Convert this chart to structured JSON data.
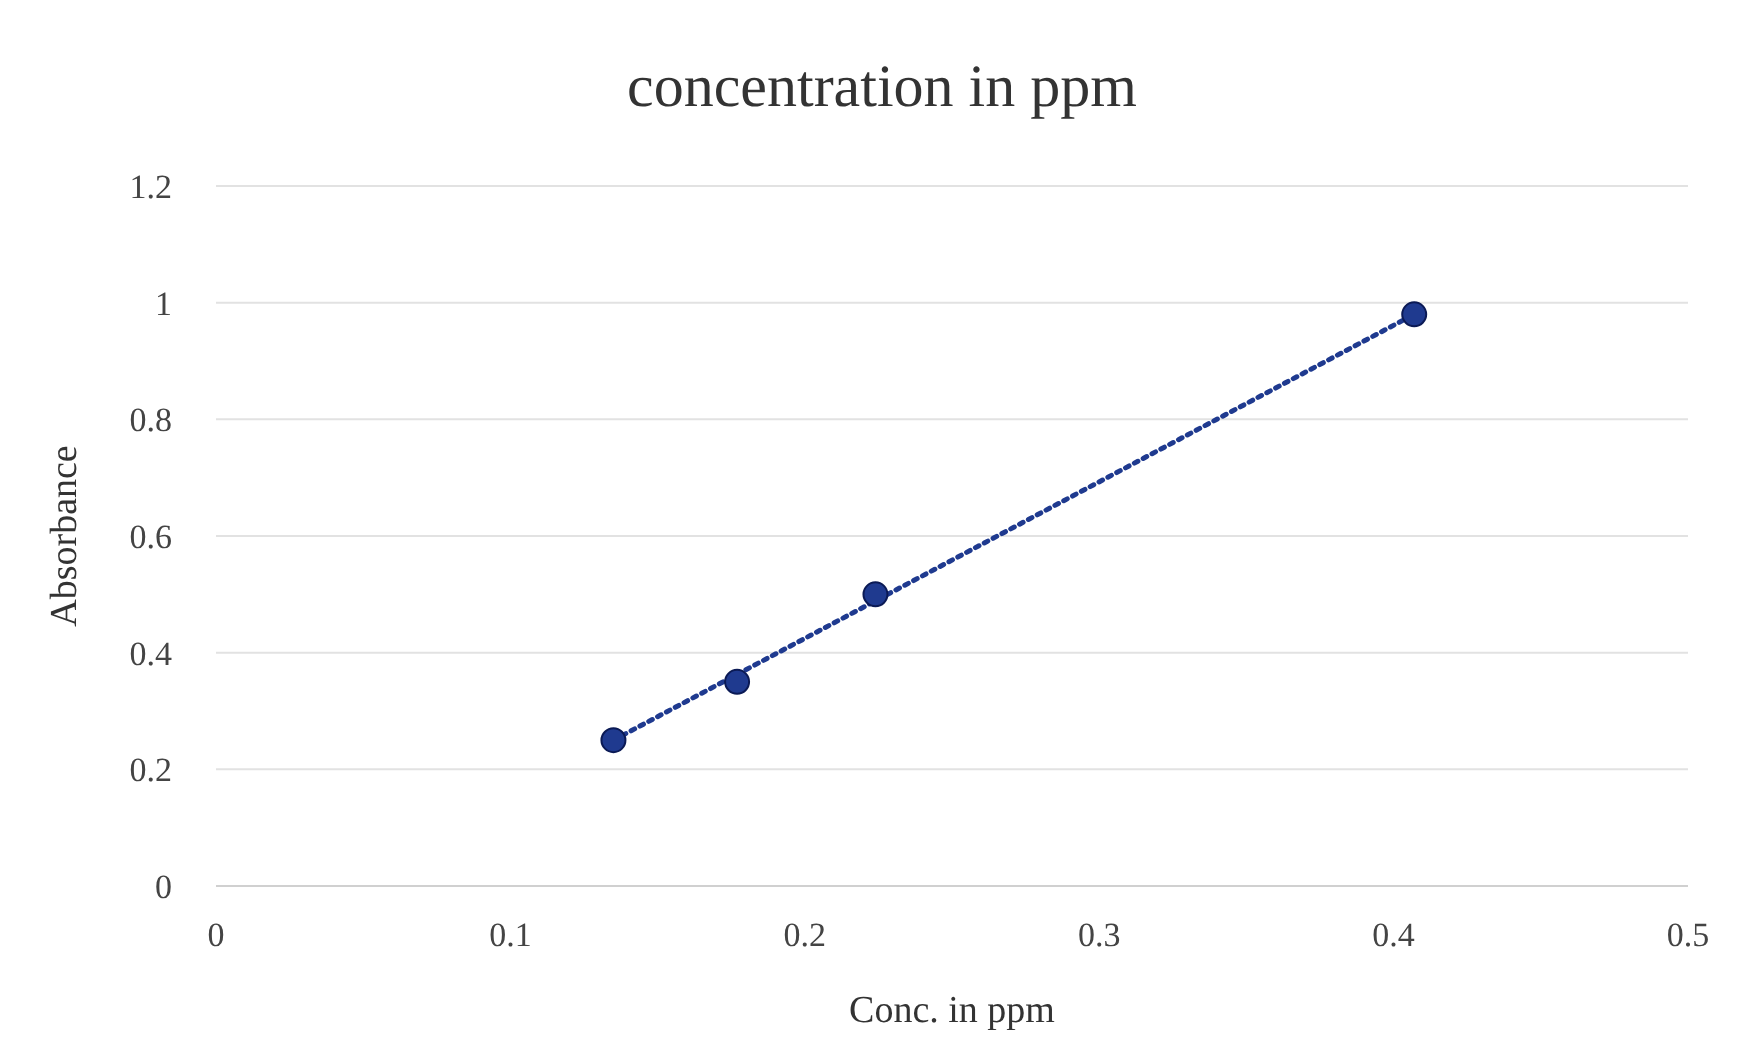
{
  "chart_data": {
    "type": "scatter",
    "title": "concentration in ppm",
    "xlabel": "Conc. in ppm",
    "ylabel": "Absorbance",
    "xlim": [
      0,
      0.5
    ],
    "xticks": [
      0,
      0.1,
      0.2,
      0.3,
      0.4,
      0.5
    ],
    "ylim": [
      0,
      1.2
    ],
    "yticks": [
      0,
      0.2,
      0.4,
      0.6,
      0.8,
      1,
      1.2
    ],
    "grid": "y",
    "series": [
      {
        "color": "#1f3a8f",
        "marker": "circle",
        "x": [
          0.135,
          0.177,
          0.224,
          0.407
        ],
        "values": [
          0.25,
          0.35,
          0.5,
          0.98
        ]
      },
      {
        "type": "line",
        "color": "#1f3a8f",
        "line_style": "dotted",
        "marker": "none",
        "x": [
          0.135,
          0.407
        ],
        "values": [
          0.25,
          0.98
        ]
      }
    ]
  }
}
